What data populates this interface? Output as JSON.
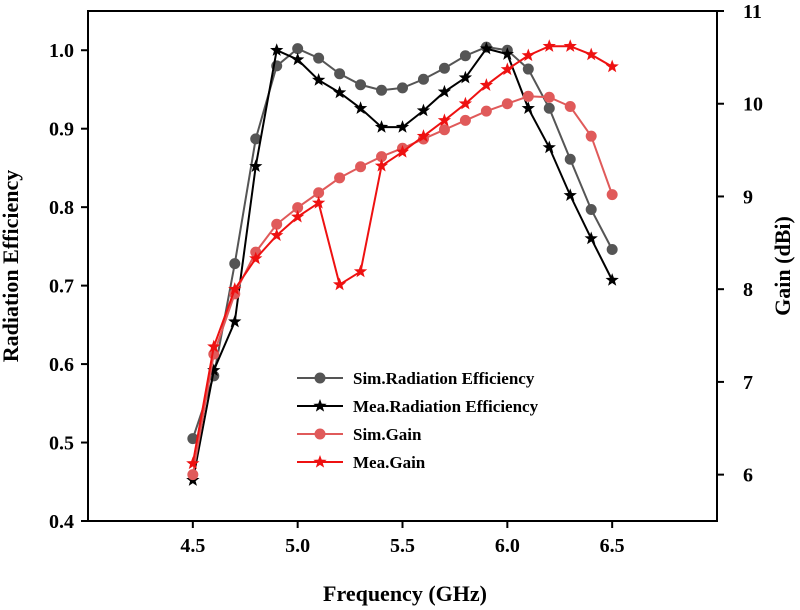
{
  "chart_data": {
    "type": "line",
    "xlabel": "Frequency (GHz)",
    "ylabel_left": "Radiation Efficiency",
    "ylabel_right": "Gain (dBi)",
    "xlim": [
      4.0,
      7.0
    ],
    "ylim_left": [
      0.4,
      1.05
    ],
    "ylim_right": [
      5.5,
      11.0
    ],
    "xticks": [
      4.5,
      5.0,
      5.5,
      6.0,
      6.5
    ],
    "xtick_labels": [
      "4.5",
      "5.0",
      "5.5",
      "6.0",
      "6.5"
    ],
    "yticks_left": [
      0.4,
      0.5,
      0.6,
      0.7,
      0.8,
      0.9,
      1.0
    ],
    "ytick_labels_left": [
      "0.4",
      "0.5",
      "0.6",
      "0.7",
      "0.8",
      "0.9",
      "1.0"
    ],
    "yticks_right": [
      6,
      7,
      8,
      9,
      10,
      11
    ],
    "ytick_labels_right": [
      "6",
      "7",
      "8",
      "9",
      "10",
      "11"
    ],
    "legend_position": "lower-center",
    "x": [
      4.5,
      4.6,
      4.7,
      4.8,
      4.9,
      5.0,
      5.1,
      5.2,
      5.3,
      5.4,
      5.5,
      5.6,
      5.7,
      5.8,
      5.9,
      6.0,
      6.1,
      6.2,
      6.3,
      6.4,
      6.5
    ],
    "series": [
      {
        "name": "Sim.Radiation Efficiency",
        "axis": "left",
        "color": "#555555",
        "marker": "circle",
        "values": [
          0.505,
          0.585,
          0.728,
          0.887,
          0.98,
          1.002,
          0.99,
          0.97,
          0.956,
          0.949,
          0.952,
          0.963,
          0.977,
          0.993,
          1.004,
          1.0,
          0.976,
          0.926,
          0.861,
          0.797,
          0.746
        ]
      },
      {
        "name": "Mea.Radiation Efficiency",
        "axis": "left",
        "color": "#000000",
        "marker": "star",
        "values": [
          0.452,
          0.592,
          0.654,
          0.852,
          1.0,
          0.988,
          0.962,
          0.946,
          0.926,
          0.902,
          0.902,
          0.923,
          0.947,
          0.965,
          1.002,
          0.995,
          0.926,
          0.876,
          0.815,
          0.76,
          0.707
        ]
      },
      {
        "name": "Sim.Gain",
        "axis": "right",
        "color": "#e05a5a",
        "marker": "circle",
        "values": [
          6.0,
          7.3,
          7.95,
          8.4,
          8.7,
          8.88,
          9.04,
          9.2,
          9.32,
          9.43,
          9.52,
          9.62,
          9.72,
          9.82,
          9.92,
          10.0,
          10.08,
          10.07,
          9.97,
          9.65,
          9.02
        ]
      },
      {
        "name": "Mea.Gain",
        "axis": "right",
        "color": "#ee1111",
        "marker": "star",
        "values": [
          6.12,
          7.38,
          8.0,
          8.33,
          8.58,
          8.78,
          8.93,
          8.05,
          8.19,
          9.33,
          9.48,
          9.65,
          9.82,
          10.0,
          10.2,
          10.37,
          10.52,
          10.62,
          10.62,
          10.53,
          10.4
        ]
      }
    ]
  }
}
